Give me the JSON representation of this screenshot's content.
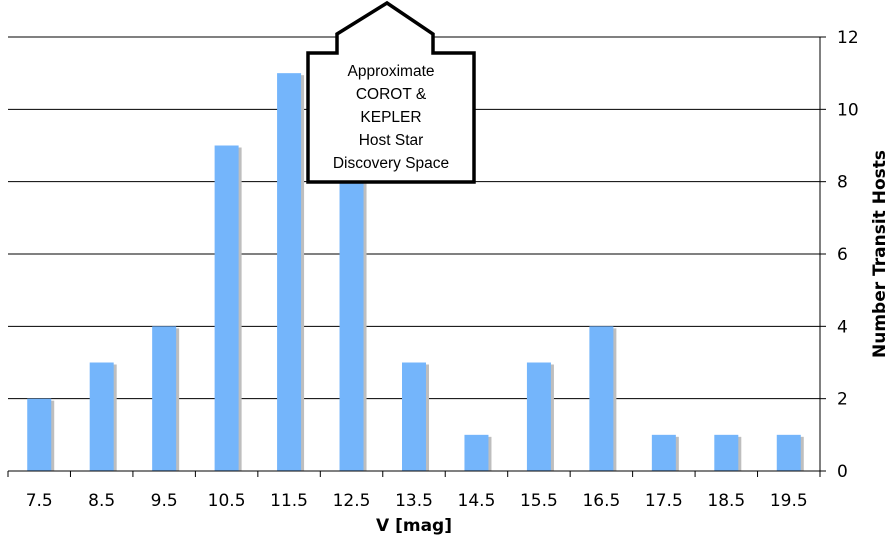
{
  "chart_data": {
    "type": "bar",
    "categories": [
      "7.5",
      "8.5",
      "9.5",
      "10.5",
      "11.5",
      "12.5",
      "13.5",
      "14.5",
      "15.5",
      "16.5",
      "17.5",
      "18.5",
      "19.5"
    ],
    "values": [
      2,
      3,
      4,
      9,
      11,
      8,
      3,
      1,
      3,
      4,
      1,
      1,
      1
    ],
    "title": "",
    "xlabel": "V [mag]",
    "ylabel": "Number Transit Hosts",
    "ylim": [
      0,
      12
    ],
    "yticks": [
      0,
      2,
      4,
      6,
      8,
      10,
      12
    ],
    "y_axis_side": "right",
    "grid": true,
    "legend": "none",
    "bar_color": "#74B5FB",
    "bar_shadow_color": "#BEBEBE",
    "annotation": {
      "lines": [
        "Approximate",
        "COROT &",
        "KEPLER",
        "Host Star",
        "Discovery Space"
      ]
    }
  }
}
